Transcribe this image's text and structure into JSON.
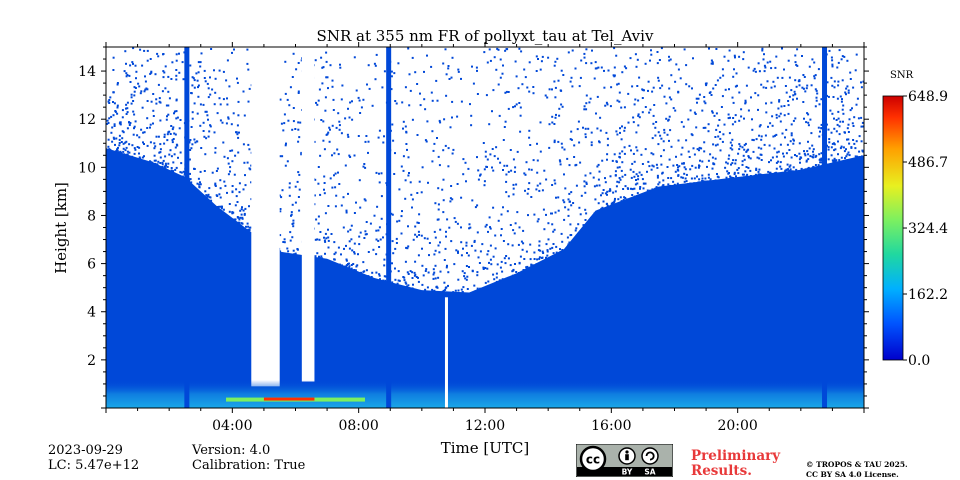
{
  "chart_data": {
    "type": "heatmap",
    "title": "SNR at 355 nm FR of pollyxt_tau at Tel_Aviv",
    "xlabel": "Time [UTC]",
    "ylabel": "Height [km]",
    "xlim_hours": [
      0,
      24
    ],
    "ylim_km": [
      0,
      15
    ],
    "x_ticks": [
      "04:00",
      "08:00",
      "12:00",
      "16:00",
      "20:00"
    ],
    "x_tick_hours": [
      4,
      8,
      12,
      16,
      20
    ],
    "y_ticks": [
      "2",
      "4",
      "6",
      "8",
      "10",
      "12",
      "14"
    ],
    "y_tick_values": [
      2,
      4,
      6,
      8,
      10,
      12,
      14
    ],
    "colorbar": {
      "label": "SNR",
      "ticks": [
        "648.9",
        "486.7",
        "324.4",
        "162.2",
        "0.0"
      ],
      "min": 0.0,
      "max": 648.9,
      "colormap": [
        "#0000cc",
        "#0055ff",
        "#00b0ff",
        "#20d8a0",
        "#7cf060",
        "#e8f020",
        "#ffa000",
        "#ff3000",
        "#cc0000"
      ]
    },
    "signal_top_km": [
      {
        "hour": 0.0,
        "km": 10.8
      },
      {
        "hour": 1.5,
        "km": 10.2
      },
      {
        "hour": 2.5,
        "km": 9.6
      },
      {
        "hour": 3.5,
        "km": 8.4
      },
      {
        "hour": 4.5,
        "km": 7.4
      },
      {
        "hour": 5.5,
        "km": 6.5
      },
      {
        "hour": 7.0,
        "km": 6.2
      },
      {
        "hour": 8.5,
        "km": 5.4
      },
      {
        "hour": 10.0,
        "km": 4.9
      },
      {
        "hour": 11.5,
        "km": 4.8
      },
      {
        "hour": 13.0,
        "km": 5.6
      },
      {
        "hour": 14.5,
        "km": 6.6
      },
      {
        "hour": 15.5,
        "km": 8.2
      },
      {
        "hour": 17.5,
        "km": 9.2
      },
      {
        "hour": 20.0,
        "km": 9.6
      },
      {
        "hour": 22.0,
        "km": 9.9
      },
      {
        "hour": 24.0,
        "km": 10.5
      }
    ],
    "clear_gaps": [
      {
        "from_hour": 4.6,
        "to_hour": 5.5,
        "bottom_km": 0.9
      },
      {
        "from_hour": 6.2,
        "to_hour": 6.6,
        "bottom_km": 1.1
      }
    ],
    "missing_profiles_hours": [
      10.78
    ],
    "saturated_profiles_hours": [
      2.56,
      8.95,
      22.75
    ],
    "high_snr_layer": {
      "from_hour": 3.8,
      "to_hour": 8.2,
      "height_km": 0.35,
      "peak_snr": 648.9
    }
  },
  "footer": {
    "date": "2023-09-29",
    "lc": "LC: 5.47e+12",
    "version": "Version: 4.0",
    "calibration": "Calibration: True",
    "license_badge": {
      "cc": "cc",
      "by": "BY",
      "sa": "SA"
    },
    "preliminary_line1": "Preliminary",
    "preliminary_line2": "Results.",
    "copyright_line1": "© TROPOS & TAU 2025.",
    "copyright_line2": "CC BY SA 4.0 License."
  }
}
